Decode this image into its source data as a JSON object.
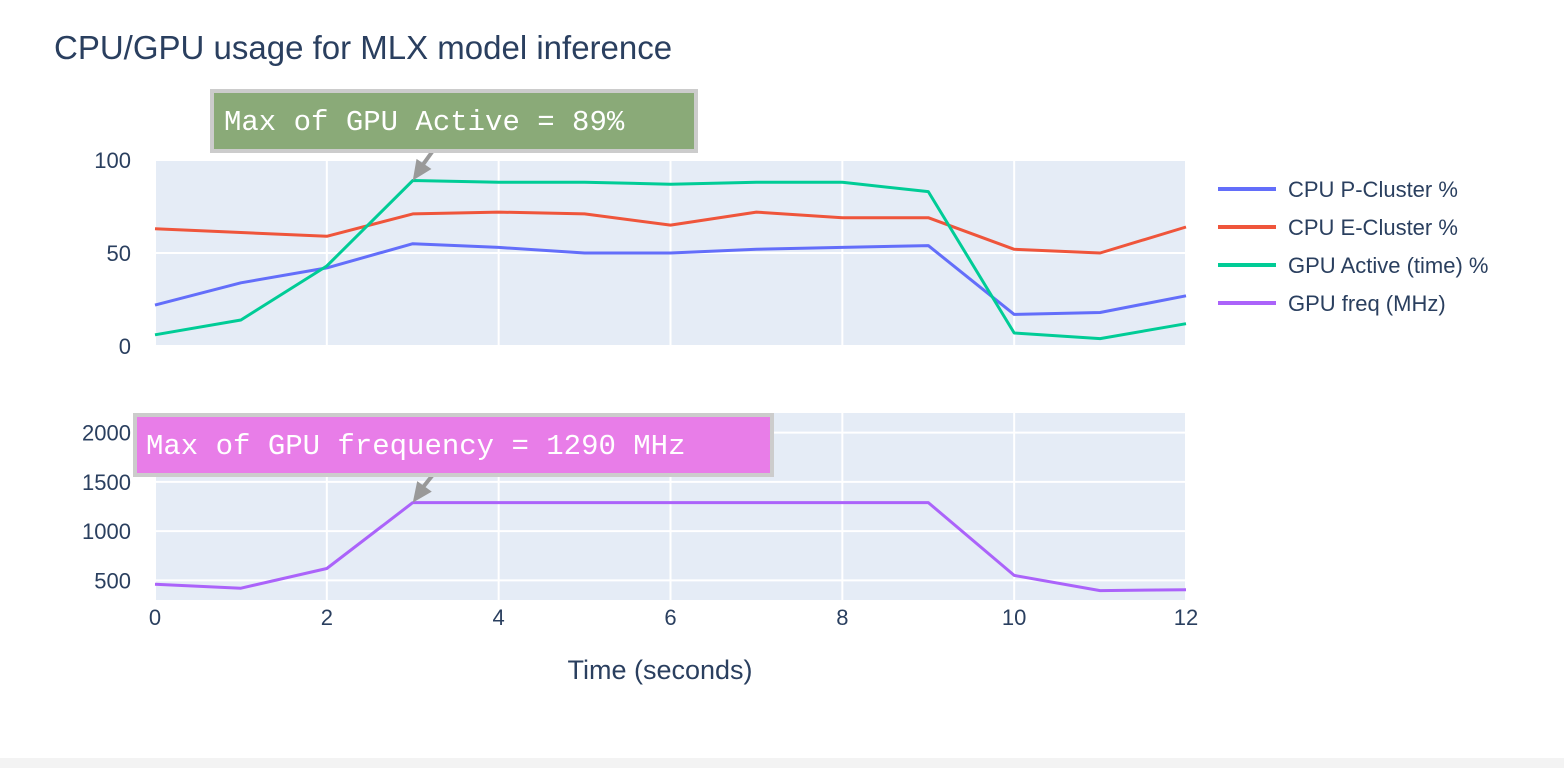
{
  "chart_data": {
    "type": "line",
    "title": "CPU/GPU usage for MLX model inference",
    "xlabel": "Time (seconds)",
    "x": [
      0,
      1,
      2,
      3,
      4,
      5,
      6,
      7,
      8,
      9,
      10,
      11,
      12
    ],
    "xlim": [
      0,
      12
    ],
    "xticks": [
      "0",
      "2",
      "4",
      "6",
      "8",
      "10",
      "12"
    ],
    "xtick_values": [
      0,
      2,
      4,
      6,
      8,
      10,
      12
    ],
    "legend_position": "right",
    "grid": true,
    "subplots": [
      {
        "ylim": [
          0,
          100
        ],
        "yticks": [
          "0",
          "50",
          "100"
        ],
        "ytick_values": [
          0,
          50,
          100
        ],
        "series": [
          {
            "name": "CPU P-Cluster %",
            "color": "#636efa",
            "values": [
              22,
              34,
              42,
              55,
              53,
              50,
              50,
              52,
              53,
              54,
              17,
              18,
              27
            ]
          },
          {
            "name": "CPU E-Cluster %",
            "color": "#ef553b",
            "values": [
              63,
              61,
              59,
              71,
              72,
              71,
              65,
              72,
              69,
              69,
              52,
              50,
              64
            ]
          },
          {
            "name": "GPU Active (time) %",
            "color": "#00cc96",
            "values": [
              6,
              14,
              43,
              89,
              88,
              88,
              87,
              88,
              88,
              83,
              7,
              4,
              12
            ]
          }
        ],
        "annotation": {
          "text": "Max of GPU Active  = 89%",
          "x": 3,
          "y": 89,
          "bgcolor": "#8aaa78"
        }
      },
      {
        "ylim": [
          300,
          2200
        ],
        "yticks": [
          "500",
          "1000",
          "1500",
          "2000"
        ],
        "ytick_values": [
          500,
          1000,
          1500,
          2000
        ],
        "series": [
          {
            "name": "GPU freq (MHz)",
            "color": "#ab63fa",
            "values": [
              460,
              420,
              620,
              1290,
              1290,
              1290,
              1290,
              1290,
              1290,
              1290,
              550,
              395,
              405
            ]
          }
        ],
        "annotation": {
          "text": "Max of GPU frequency  = 1290 MHz",
          "x": 3,
          "y": 1290,
          "bgcolor": "#e87de8"
        }
      }
    ]
  },
  "colors": {
    "plot_bg": "#e5ecf6",
    "grid": "#ffffff",
    "text": "#2a3f5f",
    "arrow": "#999999",
    "annotation_border": "#cccccc"
  }
}
